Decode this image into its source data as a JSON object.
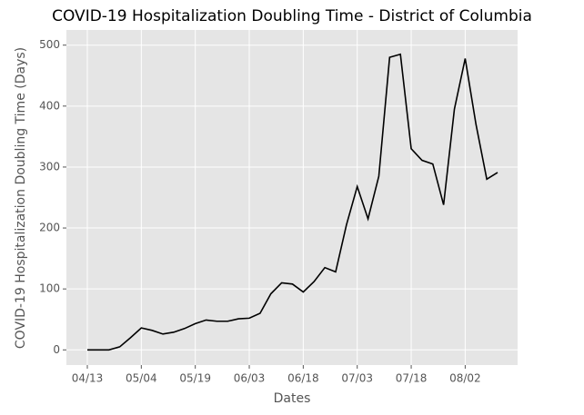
{
  "chart_data": {
    "type": "line",
    "title": "COVID-19 Hospitalization Doubling Time - District of Columbia",
    "x_label": "Dates",
    "y_label": "COVID-19 Hospitalization Doubling Time (Days)",
    "categories": [
      "04/13",
      null,
      null,
      null,
      null,
      "05/04",
      null,
      null,
      null,
      null,
      "05/19",
      null,
      null,
      null,
      null,
      "06/03",
      null,
      null,
      null,
      null,
      "06/18",
      null,
      null,
      null,
      null,
      "07/03",
      null,
      null,
      null,
      null,
      "07/18",
      null,
      null,
      null,
      null,
      "08/02",
      null,
      null,
      null
    ],
    "series": [
      {
        "color": "#000000",
        "values": [
          0,
          0,
          0,
          5,
          20,
          36,
          32,
          26,
          29,
          35,
          43,
          49,
          47,
          47,
          51,
          52,
          60,
          92,
          110,
          108,
          95,
          112,
          135,
          128,
          205,
          268,
          215,
          285,
          480,
          485,
          330,
          311,
          305,
          238,
          395,
          478,
          370,
          280,
          291
        ]
      }
    ],
    "ylim": [
      -24.9,
      524.9
    ],
    "yticks": [
      0,
      100,
      200,
      300,
      400,
      500
    ],
    "grid": true
  }
}
